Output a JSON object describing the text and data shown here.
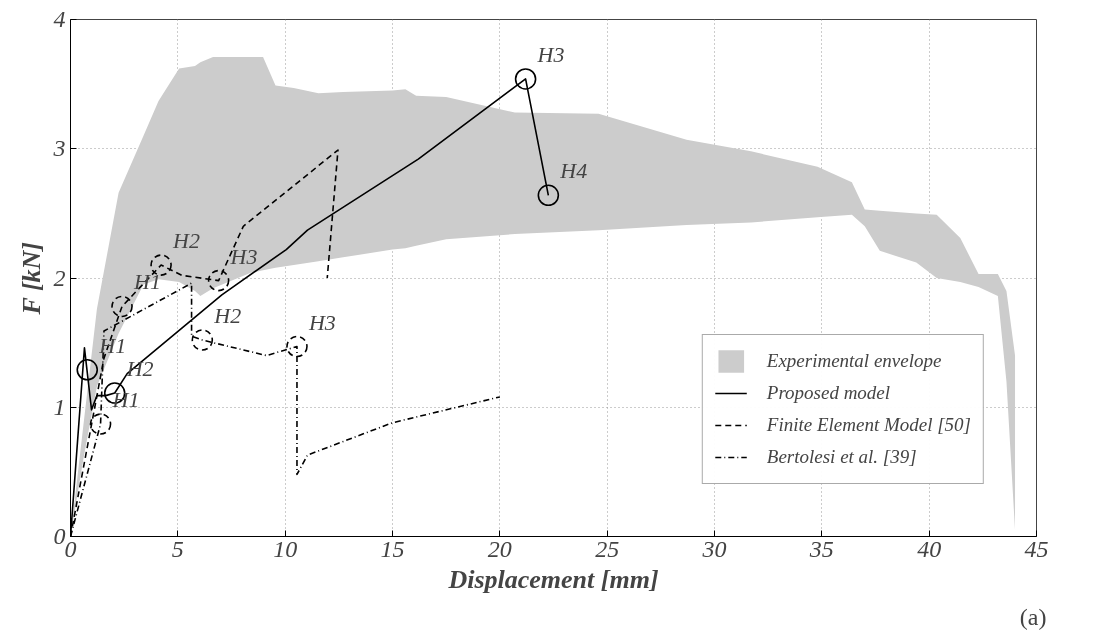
{
  "chart_data": {
    "type": "line",
    "xlabel": "Displacement [mm]",
    "ylabel": "F [kN]",
    "xlim": [
      0,
      45
    ],
    "ylim": [
      0,
      4
    ],
    "xticks": [
      0,
      5,
      10,
      15,
      20,
      25,
      30,
      35,
      40,
      45
    ],
    "yticks": [
      0,
      1,
      2,
      3,
      4
    ],
    "grid": true,
    "legend": "bottom right",
    "series": [
      {
        "name": "Experimental envelope",
        "type": "area",
        "color": "#cccccc",
        "x": [
          0,
          0.6,
          1.23,
          2.24,
          3.4,
          4.1,
          5.06,
          5.8,
          6.05,
          6.64,
          8.4,
          8.97,
          9.55,
          10.4,
          11.55,
          12.7,
          15.0,
          15.6,
          16.1,
          17.5,
          20.7,
          24.6,
          28.7,
          31.7,
          34.8,
          36.4,
          37.0,
          37.7,
          39.4,
          40.35,
          41.45,
          42.3,
          43.2,
          43.6,
          44.0
        ],
        "values": [
          null,
          null,
          null,
          null,
          null,
          null,
          null,
          null,
          null,
          null,
          null,
          null,
          null,
          null,
          null,
          null,
          null,
          null,
          null,
          null,
          null,
          null,
          null,
          null,
          null,
          null,
          null,
          null,
          null,
          null,
          null,
          null,
          null,
          null,
          null
        ],
        "upper": [
          0,
          0.86,
          1.76,
          2.66,
          3.1,
          3.37,
          3.62,
          3.64,
          3.67,
          3.71,
          3.71,
          3.71,
          3.49,
          3.47,
          3.43,
          3.44,
          3.45,
          3.46,
          3.41,
          3.4,
          3.28,
          3.27,
          3.07,
          2.98,
          2.86,
          2.74,
          2.53,
          2.52,
          2.5,
          2.49,
          2.31,
          2.03,
          2.03,
          1.9,
          1.4
        ],
        "lower": [
          0,
          0.6,
          1.16,
          1.57,
          1.95,
          1.99,
          1.97,
          1.9,
          1.86,
          1.92,
          2.04,
          2.06,
          2.08,
          2.1,
          2.13,
          2.16,
          2.22,
          2.23,
          2.25,
          2.3,
          2.34,
          2.37,
          2.41,
          2.43,
          2.47,
          2.49,
          2.4,
          2.21,
          2.12,
          2.0,
          1.97,
          1.93,
          1.86,
          1.2,
          0.05
        ]
      },
      {
        "name": "Proposed model",
        "color": "#000000",
        "line_style": "solid",
        "x": [
          0,
          0.65,
          0.98,
          1.23,
          1.64,
          2.06,
          2.64,
          7.05,
          10.05,
          11.04,
          16.2,
          21.2,
          22.26
        ],
        "values": [
          0,
          1.46,
          0.98,
          1.09,
          1.09,
          1.11,
          1.26,
          1.87,
          2.22,
          2.37,
          2.92,
          3.54,
          2.64
        ]
      },
      {
        "name": "Finite Element Model [50]",
        "color": "#000000",
        "line_style": "dashed",
        "x": [
          0,
          1.56,
          2.4,
          4.22,
          5.2,
          6.9,
          8.05,
          12.46,
          11.96
        ],
        "values": [
          0,
          1.38,
          1.78,
          2.1,
          2.02,
          1.98,
          2.4,
          2.99,
          2.0
        ]
      },
      {
        "name": "Bertolesi et al. [39]",
        "color": "#000000",
        "line_style": "dashdot",
        "x": [
          0,
          1.4,
          1.56,
          5.64,
          5.64,
          6.14,
          9.13,
          10.55,
          10.55,
          11.04,
          15,
          20
        ],
        "values": [
          0,
          0.87,
          1.59,
          1.96,
          1.55,
          1.52,
          1.4,
          1.47,
          0.48,
          0.63,
          0.88,
          1.08
        ]
      },
      {
        "type": "scatter",
        "marker": "circle",
        "color": "#000000",
        "line_style": "solid",
        "x": [
          0.78,
          2.06,
          21.2,
          22.26
        ],
        "values": [
          1.29,
          1.11,
          3.54,
          2.64
        ]
      },
      {
        "type": "scatter",
        "marker": "circle",
        "color": "#000000",
        "line_style": "dashed",
        "x": [
          2.4,
          4.22,
          6.9
        ],
        "values": [
          1.78,
          2.1,
          1.98
        ]
      },
      {
        "type": "scatter",
        "marker": "circle",
        "color": "#000000",
        "line_style": "dashed",
        "x": [
          1.4,
          6.14,
          10.55
        ],
        "values": [
          0.87,
          1.52,
          1.47
        ]
      }
    ],
    "annotations": [
      {
        "text": "H1",
        "x": 0.78,
        "y": 1.29
      },
      {
        "text": "H2",
        "x": 2.06,
        "y": 1.11
      },
      {
        "text": "H3",
        "x": 21.2,
        "y": 3.54
      },
      {
        "text": "H4",
        "x": 22.26,
        "y": 2.64
      },
      {
        "text": "H1",
        "x": 2.4,
        "y": 1.78
      },
      {
        "text": "H2",
        "x": 4.22,
        "y": 2.1
      },
      {
        "text": "H3",
        "x": 6.9,
        "y": 1.98
      },
      {
        "text": "H1",
        "x": 1.4,
        "y": 0.87
      },
      {
        "text": "H2",
        "x": 6.14,
        "y": 1.52
      },
      {
        "text": "H3",
        "x": 10.55,
        "y": 1.47
      },
      "(a)"
    ]
  }
}
